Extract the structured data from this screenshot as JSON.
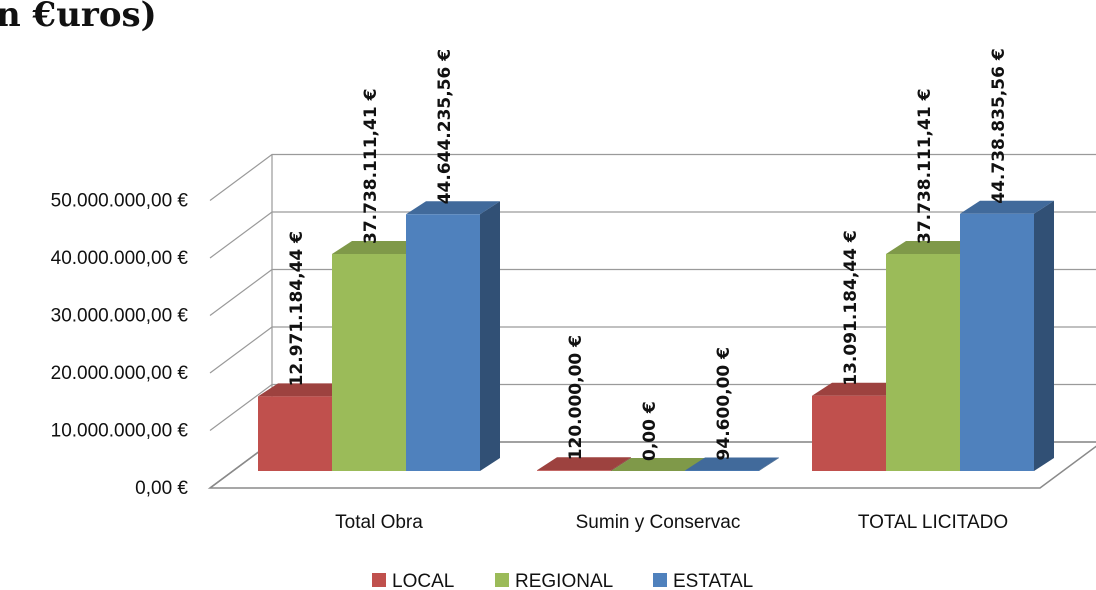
{
  "title_fragment": "n €uros)",
  "chart_data": {
    "type": "bar",
    "style": "3d-clustered-column",
    "categories": [
      "Total Obra",
      "Sumin y Conservac",
      "TOTAL LICITADO"
    ],
    "series": [
      {
        "name": "LOCAL",
        "color": "#c0504d",
        "values": [
          12971184.44,
          120000.0,
          13091184.44
        ],
        "labels": [
          "12.971.184,44 €",
          "120.000,00 €",
          "13.091.184,44 €"
        ]
      },
      {
        "name": "REGIONAL",
        "color": "#9bbb59",
        "values": [
          37738111.41,
          0.0,
          37738111.41
        ],
        "labels": [
          "37.738.111,41 €",
          "0,00 €",
          "37.738.111,41 €"
        ]
      },
      {
        "name": "ESTATAL",
        "color": "#4f81bd",
        "values": [
          44644235.56,
          94600.0,
          44738835.56
        ],
        "labels": [
          "44.644.235,56 €",
          "94.600,00 €",
          "44.738.835,56 €"
        ]
      }
    ],
    "yticks": [
      {
        "value": 0,
        "label": "0,00 €"
      },
      {
        "value": 10000000,
        "label": "10.000.000,00 €"
      },
      {
        "value": 20000000,
        "label": "20.000.000,00 €"
      },
      {
        "value": 30000000,
        "label": "30.000.000,00 €"
      },
      {
        "value": 40000000,
        "label": "40.000.000,00 €"
      },
      {
        "value": 50000000,
        "label": "50.000.000,00 €"
      }
    ],
    "ylim": [
      0,
      50000000
    ],
    "grid": true,
    "legend_position": "bottom"
  }
}
